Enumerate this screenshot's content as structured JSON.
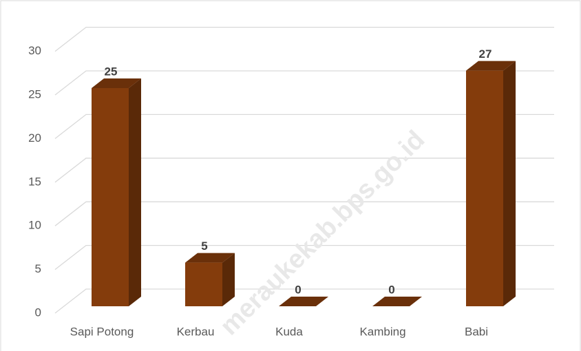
{
  "chart_data": {
    "type": "bar3d",
    "categories": [
      "Sapi Potong",
      "Kerbau",
      "Kuda",
      "Kambing",
      "Babi"
    ],
    "values": [
      25,
      5,
      0,
      0,
      27
    ],
    "color": "#843c0c",
    "ylim": [
      0,
      30
    ],
    "yticks": [
      0,
      5,
      10,
      15,
      20,
      25,
      30
    ],
    "grid": true,
    "watermark": "meraukekab.bps.go.id"
  }
}
